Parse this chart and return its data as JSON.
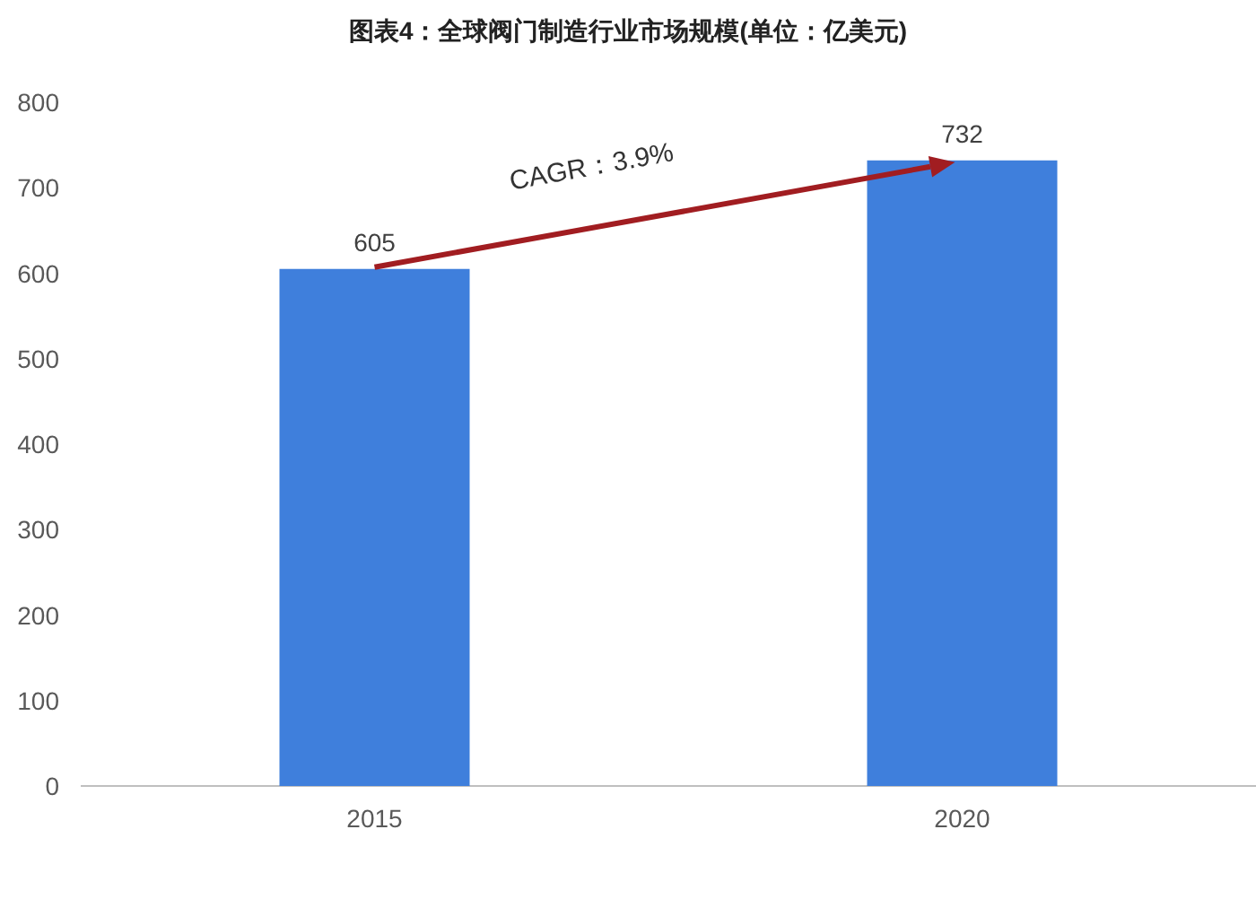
{
  "chart_data": {
    "type": "bar",
    "title": "图表4：全球阀门制造行业市场规模(单位：亿美元)",
    "categories": [
      "2015",
      "2020"
    ],
    "values": [
      605,
      732
    ],
    "color": "#3f7fdc",
    "ylim": [
      0,
      800
    ],
    "yticks": [
      0,
      100,
      200,
      300,
      400,
      500,
      600,
      700,
      800
    ],
    "data_labels": true,
    "grid": false,
    "annotations": [
      "CAGR：3.9%"
    ]
  }
}
